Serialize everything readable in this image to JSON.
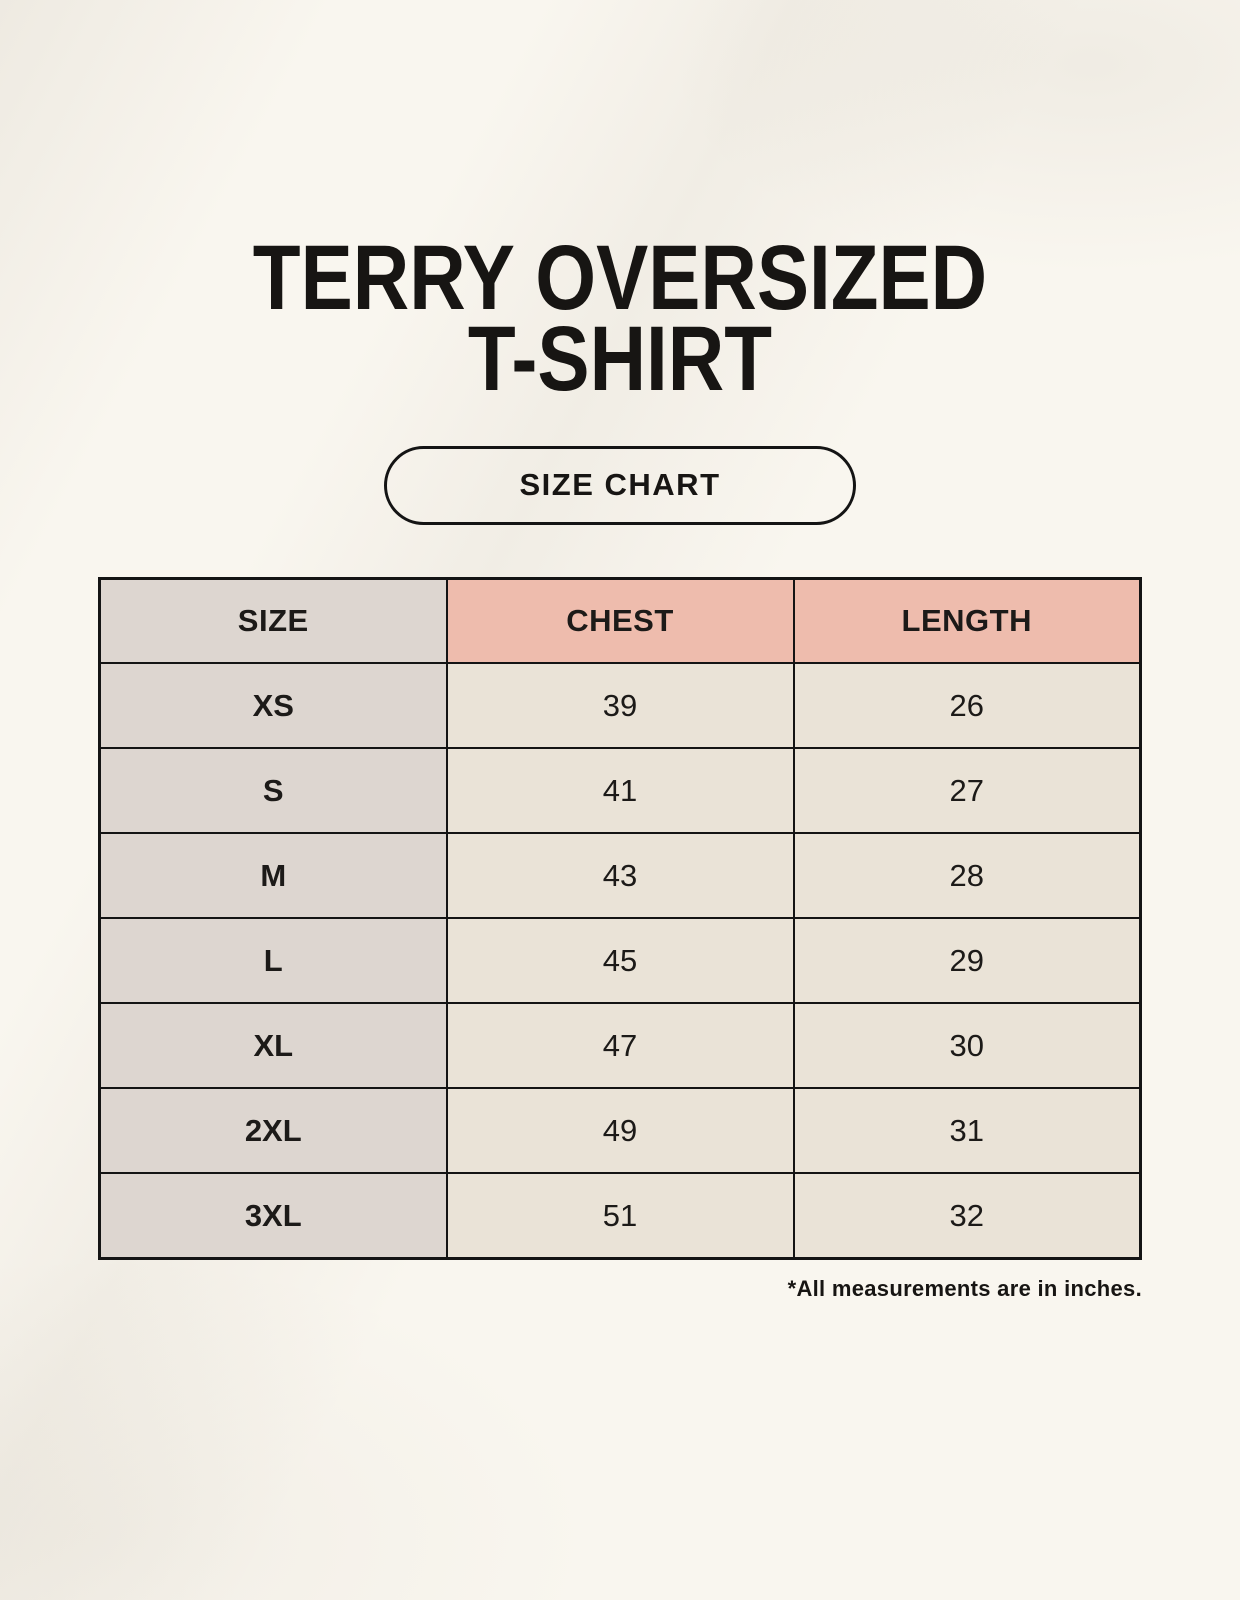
{
  "page": {
    "title_line1": "TERRY OVERSIZED",
    "title_line2": "T-SHIRT",
    "size_chart_button": "SIZE CHART",
    "footnote": "*All measurements are in inches."
  },
  "colors": {
    "page_background": "#f9f6ef",
    "size_column_bg": "#ddd6d0",
    "accent_header_bg": "#eebcad",
    "value_cell_bg": "#eae3d7",
    "border": "#141414",
    "text": "#171513"
  },
  "chart_data": {
    "type": "table",
    "title": "TERRY OVERSIZED T-SHIRT",
    "subtitle": "SIZE CHART",
    "units": "inches",
    "columns": [
      "SIZE",
      "CHEST",
      "LENGTH"
    ],
    "rows": [
      {
        "size": "XS",
        "chest": 39,
        "length": 26
      },
      {
        "size": "S",
        "chest": 41,
        "length": 27
      },
      {
        "size": "M",
        "chest": 43,
        "length": 28
      },
      {
        "size": "L",
        "chest": 45,
        "length": 29
      },
      {
        "size": "XL",
        "chest": 47,
        "length": 30
      },
      {
        "size": "2XL",
        "chest": 49,
        "length": 31
      },
      {
        "size": "3XL",
        "chest": 51,
        "length": 32
      }
    ]
  }
}
